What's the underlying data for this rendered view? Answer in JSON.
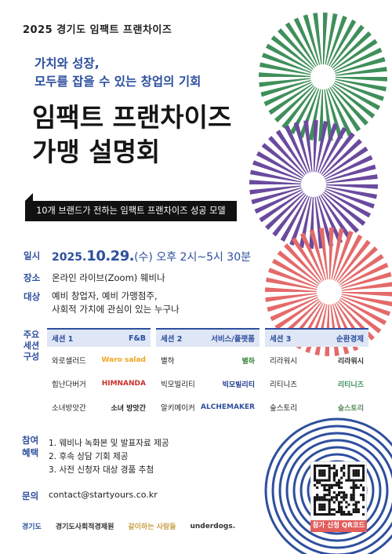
{
  "header": {
    "event_tag": "2025 경기도 임팩트 프랜차이즈"
  },
  "hero": {
    "subtitle": "가치와 성장,\n모두를 잡을 수 있는 창업의 기회",
    "title": "임팩트 프랜차이즈\n가맹 설명회",
    "banner": "10개 브랜드가 전하는 임팩트 프랜차이즈 성공 모델"
  },
  "info": {
    "date_label": "일시",
    "date_prefix": "2025.",
    "date_big": "10.29.",
    "date_day": "(수)",
    "date_time": " 오후 2시~5시 30분",
    "place_label": "장소",
    "place_value": "온라인 라이브(Zoom) 웨비나",
    "target_label": "대상",
    "target_line1": "예비 창업자, 예비 가맹점주,",
    "target_line2": "사회적 가치에 관심이 있는 누구나"
  },
  "sessions": {
    "label": "주요\n세션\n구성",
    "columns": [
      {
        "name": "세션 1",
        "category": "F&B",
        "brands": [
          {
            "name": "와로샐러드",
            "logo": "Waro salad"
          },
          {
            "name": "힘난다버거",
            "logo": "HIMNANDA"
          },
          {
            "name": "소녀방앗간",
            "logo": "소녀 방앗간"
          }
        ]
      },
      {
        "name": "세션 2",
        "category": "서비스/플랫폼",
        "brands": [
          {
            "name": "별하",
            "logo": "별하"
          },
          {
            "name": "빅모빌리티",
            "logo": "빅모빌리티"
          },
          {
            "name": "알키메이커",
            "logo": "ALCHEMAKER"
          }
        ]
      },
      {
        "name": "세션 3",
        "category": "순환경제",
        "brands": [
          {
            "name": "리라워시",
            "logo": "리라워시"
          },
          {
            "name": "리티니즈",
            "logo": "리티니즈"
          },
          {
            "name": "숲스토리",
            "logo": "숲스토리"
          }
        ]
      }
    ]
  },
  "benefits": {
    "label": "참여\n혜택",
    "items": [
      "1.  웨비나 녹화본 및 발표자료 제공",
      "2.  후속 상담 기회 제공",
      "3.  사전 신청자 대상 경품 추첨"
    ]
  },
  "inquiry": {
    "label": "문의",
    "value": "contact@startyours.co.kr"
  },
  "qr": {
    "label": "참가 신청 QR코드"
  },
  "footer": {
    "logos": [
      "경기도",
      "경기도사회적경제원",
      "같이하는 사람들",
      "underdogs."
    ]
  },
  "colors": {
    "navy": "#2d4f9e",
    "green": "#3f8f5a",
    "purple": "#6a4a9e",
    "coral": "#e46a6a",
    "ink": "#151515"
  }
}
